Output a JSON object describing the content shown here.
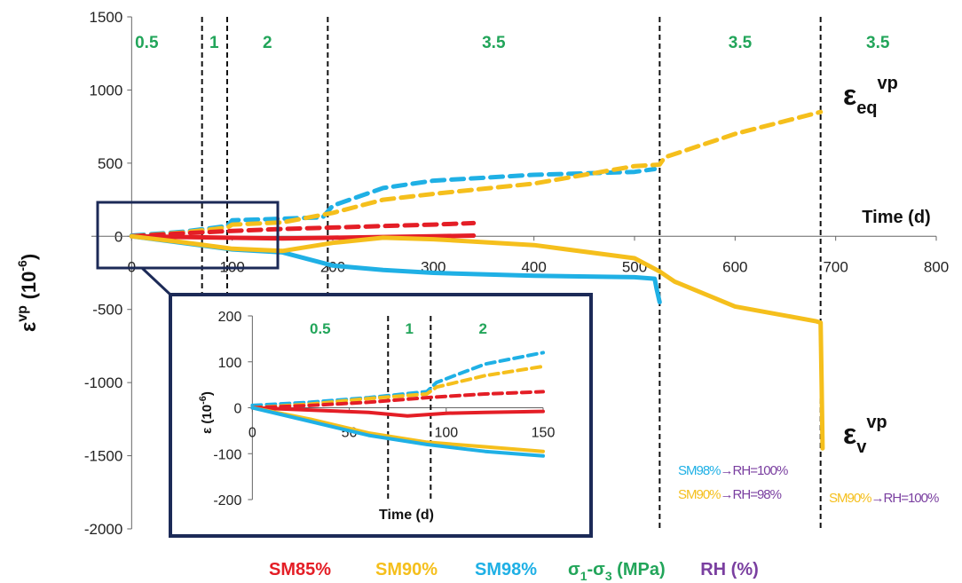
{
  "colors": {
    "SM85": "#e41e26",
    "SM90": "#f5bf1c",
    "SM98": "#1fb0e5",
    "stress": "#22a55a",
    "rh": "#7a3fa0",
    "inset_frame": "#1c2a57"
  },
  "chart_data": [
    {
      "type": "line",
      "id": "main",
      "ylabel": "ε",
      "ylabel_sup": "vp",
      "ylabel_unit": "(10",
      "ylabel_unit_sup": "-6",
      "ylabel_unit_end": ")",
      "xlabel": "Time (d)",
      "xlim": [
        -40,
        800
      ],
      "ylim": [
        -2000,
        1500
      ],
      "xticks": [
        "0",
        "100",
        "200",
        "300",
        "400",
        "500",
        "600",
        "700",
        "800"
      ],
      "yticks": [
        "1500",
        "1000",
        "500",
        "0",
        "-500",
        "-1000",
        "-1500",
        "-2000"
      ],
      "stress_boundaries": [
        70,
        95,
        195,
        525,
        685
      ],
      "stress_labels": [
        {
          "x": 15,
          "text": "0.5"
        },
        {
          "x": 82,
          "text": "1"
        },
        {
          "x": 135,
          "text": "2"
        },
        {
          "x": 360,
          "text": "3.5"
        },
        {
          "x": 605,
          "text": "3.5"
        },
        {
          "x": 742,
          "text": "3.5"
        }
      ],
      "curve_labels": {
        "eq_main": "ε",
        "eq_sub": "eq",
        "eq_sup": "vp",
        "v_main": "ε",
        "v_sub": "v",
        "v_sup": "vp"
      },
      "rh_annotations": [
        {
          "sm": "SM98%",
          "arrow": "→",
          "rh": "RH=100%"
        },
        {
          "sm": "SM90%",
          "arrow": "→",
          "rh": "RH=98%"
        },
        {
          "sm": "SM90%",
          "arrow": "→",
          "rh": "RH=100%"
        }
      ],
      "series": [
        {
          "name": "SM98%",
          "kind": "deviatoric",
          "style": "dashed",
          "color_key": "SM98",
          "x": [
            0,
            50,
            95,
            100,
            150,
            190,
            200,
            250,
            300,
            400,
            500,
            520
          ],
          "y": [
            5,
            30,
            70,
            110,
            120,
            130,
            210,
            330,
            380,
            420,
            440,
            460
          ]
        },
        {
          "name": "SM90%",
          "kind": "deviatoric",
          "style": "dashed",
          "color_key": "SM90",
          "x": [
            0,
            50,
            95,
            100,
            150,
            200,
            250,
            300,
            400,
            500,
            525,
            530,
            600,
            685
          ],
          "y": [
            0,
            25,
            60,
            80,
            95,
            160,
            250,
            290,
            360,
            480,
            490,
            540,
            700,
            850
          ]
        },
        {
          "name": "SM85%",
          "kind": "deviatoric",
          "style": "dashed",
          "color_key": "SM85",
          "x": [
            0,
            50,
            95,
            150,
            200,
            300,
            340
          ],
          "y": [
            0,
            20,
            35,
            50,
            60,
            80,
            90
          ]
        },
        {
          "name": "SM85%",
          "kind": "volumetric",
          "style": "solid",
          "color_key": "SM85",
          "x": [
            0,
            50,
            95,
            150,
            200,
            300,
            340
          ],
          "y": [
            0,
            -5,
            -10,
            -15,
            -10,
            0,
            5
          ]
        },
        {
          "name": "SM98%",
          "kind": "volumetric",
          "style": "solid",
          "color_key": "SM98",
          "x": [
            0,
            50,
            100,
            150,
            200,
            250,
            300,
            400,
            500,
            520,
            522,
            525
          ],
          "y": [
            0,
            -45,
            -90,
            -110,
            -200,
            -230,
            -250,
            -270,
            -280,
            -290,
            -360,
            -450
          ]
        },
        {
          "name": "SM90%",
          "kind": "volumetric",
          "style": "solid",
          "color_key": "SM90",
          "x": [
            0,
            50,
            100,
            150,
            200,
            250,
            300,
            400,
            500,
            525,
            540,
            600,
            680,
            685,
            686,
            687
          ],
          "y": [
            0,
            -40,
            -85,
            -100,
            -45,
            -10,
            -20,
            -60,
            -150,
            -240,
            -310,
            -480,
            -580,
            -590,
            -1000,
            -1450
          ]
        }
      ]
    },
    {
      "type": "line",
      "id": "inset",
      "ylabel": "ε",
      "ylabel_unit": "(10",
      "ylabel_unit_sup": "-6",
      "ylabel_unit_end": ")",
      "xlabel": "Time (d)",
      "xlim": [
        -2,
        150
      ],
      "ylim": [
        -200,
        200
      ],
      "xticks": [
        "0",
        "50",
        "100",
        "150"
      ],
      "yticks": [
        "200",
        "100",
        "0",
        "-100",
        "-200"
      ],
      "stress_boundaries": [
        70,
        92
      ],
      "stress_labels": [
        {
          "x": 35,
          "text": "0.5"
        },
        {
          "x": 81,
          "text": "1"
        },
        {
          "x": 119,
          "text": "2"
        }
      ],
      "series": [
        {
          "name": "SM98%",
          "kind": "deviatoric",
          "style": "dashed",
          "color_key": "SM98",
          "x": [
            0,
            30,
            60,
            90,
            95,
            120,
            150
          ],
          "y": [
            5,
            12,
            22,
            35,
            55,
            95,
            120
          ]
        },
        {
          "name": "SM90%",
          "kind": "deviatoric",
          "style": "dashed",
          "color_key": "SM90",
          "x": [
            0,
            30,
            60,
            90,
            95,
            120,
            150
          ],
          "y": [
            0,
            8,
            20,
            30,
            45,
            70,
            90
          ]
        },
        {
          "name": "SM85%",
          "kind": "deviatoric",
          "style": "dashed",
          "color_key": "SM85",
          "x": [
            0,
            30,
            60,
            90,
            120,
            150
          ],
          "y": [
            0,
            5,
            12,
            22,
            30,
            35
          ]
        },
        {
          "name": "SM85%",
          "kind": "volumetric",
          "style": "solid",
          "color_key": "SM85",
          "x": [
            0,
            30,
            60,
            80,
            100,
            120,
            150
          ],
          "y": [
            0,
            -5,
            -10,
            -18,
            -12,
            -10,
            -8
          ]
        },
        {
          "name": "SM90%",
          "kind": "volumetric",
          "style": "solid",
          "color_key": "SM90",
          "x": [
            0,
            30,
            60,
            90,
            120,
            150
          ],
          "y": [
            0,
            -25,
            -55,
            -75,
            -85,
            -95
          ]
        },
        {
          "name": "SM98%",
          "kind": "volumetric",
          "style": "solid",
          "color_key": "SM98",
          "x": [
            0,
            30,
            60,
            90,
            120,
            150
          ],
          "y": [
            0,
            -30,
            -60,
            -80,
            -95,
            -105
          ]
        }
      ]
    }
  ],
  "legend": [
    {
      "text": "SM85%",
      "color_key": "SM85"
    },
    {
      "text": "SM90%",
      "color_key": "SM90"
    },
    {
      "text": "SM98%",
      "color_key": "SM98"
    },
    {
      "text": "σ",
      "sub1": "1",
      "mid": "-σ",
      "sub2": "3",
      "end": " (MPa)",
      "color_key": "stress"
    },
    {
      "text": "RH (%)",
      "color_key": "rh"
    }
  ]
}
